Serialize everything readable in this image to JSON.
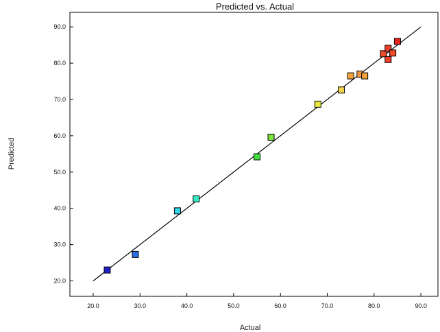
{
  "chart_data": {
    "type": "scatter",
    "title": "Predicted vs. Actual",
    "xlabel": "Actual",
    "ylabel": "Predicted",
    "xlim": [
      15,
      95
    ],
    "ylim": [
      15,
      95
    ],
    "x_ticks": [
      "20.0",
      "30.0",
      "40.0",
      "50.0",
      "60.0",
      "70.0",
      "80.0",
      "90.0"
    ],
    "y_ticks": [
      "20.0",
      "30.0",
      "40.0",
      "50.0",
      "60.0",
      "70.0",
      "80.0",
      "90.0"
    ],
    "reference_line": {
      "from": [
        20,
        20
      ],
      "to": [
        90,
        90
      ],
      "color": "#000000"
    },
    "grid": false,
    "marker": "square",
    "points": [
      {
        "x": 23.0,
        "y": 23.0,
        "color": "#1f1fc8"
      },
      {
        "x": 29.0,
        "y": 27.3,
        "color": "#2a6fe6"
      },
      {
        "x": 38.0,
        "y": 39.3,
        "color": "#33d6e6"
      },
      {
        "x": 42.0,
        "y": 42.6,
        "color": "#33e6c2"
      },
      {
        "x": 55.0,
        "y": 54.2,
        "color": "#3de03d"
      },
      {
        "x": 58.0,
        "y": 59.6,
        "color": "#7ae63d"
      },
      {
        "x": 68.0,
        "y": 68.7,
        "color": "#e6e63d"
      },
      {
        "x": 73.0,
        "y": 72.6,
        "color": "#f2d24a"
      },
      {
        "x": 75.0,
        "y": 76.5,
        "color": "#f5a43d"
      },
      {
        "x": 77.0,
        "y": 77.0,
        "color": "#f5963d"
      },
      {
        "x": 78.0,
        "y": 76.5,
        "color": "#f5a43d"
      },
      {
        "x": 82.0,
        "y": 82.6,
        "color": "#f04a2a"
      },
      {
        "x": 83.0,
        "y": 84.1,
        "color": "#f0402a"
      },
      {
        "x": 84.0,
        "y": 82.8,
        "color": "#f04a2a"
      },
      {
        "x": 83.0,
        "y": 81.0,
        "color": "#f0402a"
      },
      {
        "x": 85.0,
        "y": 86.0,
        "color": "#e8261f"
      }
    ]
  }
}
